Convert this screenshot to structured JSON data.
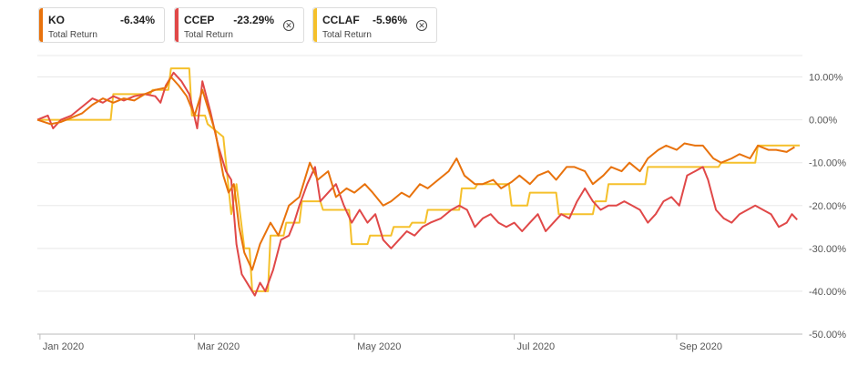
{
  "legend": [
    {
      "ticker": "KO",
      "return": "-6.34%",
      "metric": "Total Return",
      "color": "#e8720c",
      "closable": false
    },
    {
      "ticker": "CCEP",
      "return": "-23.29%",
      "metric": "Total Return",
      "color": "#e04848",
      "closable": true
    },
    {
      "ticker": "CCLAF",
      "return": "-5.96%",
      "metric": "Total Return",
      "color": "#f5c02b",
      "closable": true
    }
  ],
  "chart_data": {
    "type": "line",
    "ylim": [
      -50,
      15
    ],
    "yticks": [
      {
        "v": 10,
        "label": "10.00%"
      },
      {
        "v": 0,
        "label": "0.00%"
      },
      {
        "v": -10,
        "label": "-10.00%"
      },
      {
        "v": -20,
        "label": "-20.00%"
      },
      {
        "v": -30,
        "label": "-30.00%"
      },
      {
        "v": -40,
        "label": "-40.00%"
      },
      {
        "v": -50,
        "label": "-50.00%"
      }
    ],
    "xticks": [
      {
        "date": "2020-01-02",
        "label": "Jan 2020"
      },
      {
        "date": "2020-03-01",
        "label": "Mar 2020"
      },
      {
        "date": "2020-05-01",
        "label": "May 2020"
      },
      {
        "date": "2020-07-01",
        "label": "Jul 2020"
      },
      {
        "date": "2020-09-01",
        "label": "Sep 2020"
      }
    ],
    "xlim": [
      "2020-01-01",
      "2020-10-19"
    ],
    "grid": true,
    "series": [
      {
        "name": "KO",
        "color": "#e8720c",
        "points": [
          [
            "2020-01-01",
            0
          ],
          [
            "2020-01-06",
            -1
          ],
          [
            "2020-01-10",
            -0.5
          ],
          [
            "2020-01-14",
            0.5
          ],
          [
            "2020-01-18",
            1.5
          ],
          [
            "2020-01-22",
            3.5
          ],
          [
            "2020-01-26",
            5
          ],
          [
            "2020-01-30",
            4
          ],
          [
            "2020-02-03",
            5
          ],
          [
            "2020-02-07",
            4.5
          ],
          [
            "2020-02-11",
            6
          ],
          [
            "2020-02-15",
            7
          ],
          [
            "2020-02-19",
            7.5
          ],
          [
            "2020-02-21",
            10
          ],
          [
            "2020-02-24",
            8
          ],
          [
            "2020-02-27",
            5.5
          ],
          [
            "2020-03-01",
            1
          ],
          [
            "2020-03-04",
            7
          ],
          [
            "2020-03-06",
            3
          ],
          [
            "2020-03-09",
            -3
          ],
          [
            "2020-03-12",
            -13
          ],
          [
            "2020-03-14",
            -17
          ],
          [
            "2020-03-16",
            -15
          ],
          [
            "2020-03-18",
            -25
          ],
          [
            "2020-03-20",
            -31
          ],
          [
            "2020-03-23",
            -35
          ],
          [
            "2020-03-26",
            -29
          ],
          [
            "2020-03-30",
            -24
          ],
          [
            "2020-04-02",
            -27
          ],
          [
            "2020-04-06",
            -20
          ],
          [
            "2020-04-10",
            -18
          ],
          [
            "2020-04-14",
            -10
          ],
          [
            "2020-04-17",
            -14
          ],
          [
            "2020-04-21",
            -12
          ],
          [
            "2020-04-24",
            -18
          ],
          [
            "2020-04-28",
            -16
          ],
          [
            "2020-05-01",
            -17
          ],
          [
            "2020-05-05",
            -15
          ],
          [
            "2020-05-08",
            -17
          ],
          [
            "2020-05-12",
            -20
          ],
          [
            "2020-05-15",
            -19
          ],
          [
            "2020-05-19",
            -17
          ],
          [
            "2020-05-22",
            -18
          ],
          [
            "2020-05-26",
            -15
          ],
          [
            "2020-05-29",
            -16
          ],
          [
            "2020-06-02",
            -14
          ],
          [
            "2020-06-06",
            -12
          ],
          [
            "2020-06-09",
            -9
          ],
          [
            "2020-06-12",
            -13
          ],
          [
            "2020-06-16",
            -15
          ],
          [
            "2020-06-19",
            -15
          ],
          [
            "2020-06-23",
            -14
          ],
          [
            "2020-06-26",
            -16
          ],
          [
            "2020-06-30",
            -14.5
          ],
          [
            "2020-07-03",
            -13
          ],
          [
            "2020-07-07",
            -15
          ],
          [
            "2020-07-10",
            -13
          ],
          [
            "2020-07-14",
            -12
          ],
          [
            "2020-07-17",
            -14
          ],
          [
            "2020-07-21",
            -11
          ],
          [
            "2020-07-24",
            -11
          ],
          [
            "2020-07-28",
            -12
          ],
          [
            "2020-07-31",
            -15
          ],
          [
            "2020-08-04",
            -13
          ],
          [
            "2020-08-07",
            -11
          ],
          [
            "2020-08-11",
            -12
          ],
          [
            "2020-08-14",
            -10
          ],
          [
            "2020-08-18",
            -12
          ],
          [
            "2020-08-21",
            -9
          ],
          [
            "2020-08-25",
            -7
          ],
          [
            "2020-08-28",
            -6
          ],
          [
            "2020-09-01",
            -7
          ],
          [
            "2020-09-04",
            -5.5
          ],
          [
            "2020-09-08",
            -6
          ],
          [
            "2020-09-11",
            -6
          ],
          [
            "2020-09-15",
            -9
          ],
          [
            "2020-09-18",
            -10
          ],
          [
            "2020-09-22",
            -9
          ],
          [
            "2020-09-25",
            -8
          ],
          [
            "2020-09-29",
            -9
          ],
          [
            "2020-10-02",
            -6
          ],
          [
            "2020-10-06",
            -7
          ],
          [
            "2020-10-09",
            -7
          ],
          [
            "2020-10-13",
            -7.5
          ],
          [
            "2020-10-16",
            -6.34
          ]
        ]
      },
      {
        "name": "CCEP",
        "color": "#e04848",
        "points": [
          [
            "2020-01-01",
            0
          ],
          [
            "2020-01-05",
            1
          ],
          [
            "2020-01-07",
            -2
          ],
          [
            "2020-01-10",
            0
          ],
          [
            "2020-01-14",
            1
          ],
          [
            "2020-01-18",
            3
          ],
          [
            "2020-01-22",
            5
          ],
          [
            "2020-01-26",
            4
          ],
          [
            "2020-01-30",
            5.5
          ],
          [
            "2020-02-03",
            4.5
          ],
          [
            "2020-02-07",
            5.5
          ],
          [
            "2020-02-11",
            6
          ],
          [
            "2020-02-15",
            5.5
          ],
          [
            "2020-02-17",
            4
          ],
          [
            "2020-02-19",
            8
          ],
          [
            "2020-02-22",
            11
          ],
          [
            "2020-02-25",
            9
          ],
          [
            "2020-02-28",
            6
          ],
          [
            "2020-03-02",
            -2
          ],
          [
            "2020-03-04",
            9
          ],
          [
            "2020-03-07",
            2
          ],
          [
            "2020-03-10",
            -6
          ],
          [
            "2020-03-13",
            -12
          ],
          [
            "2020-03-15",
            -14
          ],
          [
            "2020-03-17",
            -29
          ],
          [
            "2020-03-19",
            -36
          ],
          [
            "2020-03-22",
            -39
          ],
          [
            "2020-03-24",
            -41
          ],
          [
            "2020-03-26",
            -38
          ],
          [
            "2020-03-28",
            -40
          ],
          [
            "2020-03-31",
            -35
          ],
          [
            "2020-04-03",
            -28
          ],
          [
            "2020-04-06",
            -27
          ],
          [
            "2020-04-08",
            -24
          ],
          [
            "2020-04-10",
            -20
          ],
          [
            "2020-04-13",
            -15
          ],
          [
            "2020-04-16",
            -11
          ],
          [
            "2020-04-18",
            -19
          ],
          [
            "2020-04-21",
            -17
          ],
          [
            "2020-04-24",
            -15
          ],
          [
            "2020-04-27",
            -20
          ],
          [
            "2020-04-30",
            -24
          ],
          [
            "2020-05-03",
            -21
          ],
          [
            "2020-05-06",
            -24
          ],
          [
            "2020-05-09",
            -22
          ],
          [
            "2020-05-12",
            -28
          ],
          [
            "2020-05-15",
            -30
          ],
          [
            "2020-05-18",
            -28
          ],
          [
            "2020-05-21",
            -26
          ],
          [
            "2020-05-24",
            -27
          ],
          [
            "2020-05-27",
            -25
          ],
          [
            "2020-05-30",
            -24
          ],
          [
            "2020-06-03",
            -23
          ],
          [
            "2020-06-07",
            -21
          ],
          [
            "2020-06-10",
            -20
          ],
          [
            "2020-06-13",
            -21
          ],
          [
            "2020-06-16",
            -25
          ],
          [
            "2020-06-19",
            -23
          ],
          [
            "2020-06-22",
            -22
          ],
          [
            "2020-06-25",
            -24
          ],
          [
            "2020-06-28",
            -25
          ],
          [
            "2020-07-01",
            -24
          ],
          [
            "2020-07-04",
            -26
          ],
          [
            "2020-07-07",
            -24
          ],
          [
            "2020-07-10",
            -22
          ],
          [
            "2020-07-13",
            -26
          ],
          [
            "2020-07-16",
            -24
          ],
          [
            "2020-07-19",
            -22
          ],
          [
            "2020-07-22",
            -23
          ],
          [
            "2020-07-25",
            -19
          ],
          [
            "2020-07-28",
            -16
          ],
          [
            "2020-07-31",
            -19
          ],
          [
            "2020-08-03",
            -21
          ],
          [
            "2020-08-06",
            -20
          ],
          [
            "2020-08-09",
            -20
          ],
          [
            "2020-08-12",
            -19
          ],
          [
            "2020-08-15",
            -20
          ],
          [
            "2020-08-18",
            -21
          ],
          [
            "2020-08-21",
            -24
          ],
          [
            "2020-08-24",
            -22
          ],
          [
            "2020-08-27",
            -19
          ],
          [
            "2020-08-30",
            -18
          ],
          [
            "2020-09-02",
            -20
          ],
          [
            "2020-09-05",
            -13
          ],
          [
            "2020-09-08",
            -12
          ],
          [
            "2020-09-11",
            -11
          ],
          [
            "2020-09-13",
            -14
          ],
          [
            "2020-09-16",
            -21
          ],
          [
            "2020-09-19",
            -23
          ],
          [
            "2020-09-22",
            -24
          ],
          [
            "2020-09-25",
            -22
          ],
          [
            "2020-09-28",
            -21
          ],
          [
            "2020-10-01",
            -20
          ],
          [
            "2020-10-04",
            -21
          ],
          [
            "2020-10-07",
            -22
          ],
          [
            "2020-10-10",
            -25
          ],
          [
            "2020-10-13",
            -24
          ],
          [
            "2020-10-15",
            -22
          ],
          [
            "2020-10-17",
            -23.29
          ]
        ]
      },
      {
        "name": "CCLAF",
        "color": "#f5c02b",
        "points": [
          [
            "2020-01-01",
            0
          ],
          [
            "2020-01-29",
            0
          ],
          [
            "2020-01-30",
            6
          ],
          [
            "2020-02-13",
            6
          ],
          [
            "2020-02-14",
            7
          ],
          [
            "2020-02-20",
            7
          ],
          [
            "2020-02-21",
            12
          ],
          [
            "2020-02-28",
            12
          ],
          [
            "2020-02-29",
            1
          ],
          [
            "2020-03-05",
            1
          ],
          [
            "2020-03-06",
            -1
          ],
          [
            "2020-03-12",
            -4
          ],
          [
            "2020-03-15",
            -22
          ],
          [
            "2020-03-17",
            -15
          ],
          [
            "2020-03-20",
            -30
          ],
          [
            "2020-03-22",
            -30
          ],
          [
            "2020-03-23",
            -40
          ],
          [
            "2020-03-29",
            -40
          ],
          [
            "2020-03-30",
            -27
          ],
          [
            "2020-04-04",
            -27
          ],
          [
            "2020-04-05",
            -24
          ],
          [
            "2020-04-10",
            -24
          ],
          [
            "2020-04-11",
            -19
          ],
          [
            "2020-04-18",
            -19
          ],
          [
            "2020-04-19",
            -21
          ],
          [
            "2020-04-29",
            -21
          ],
          [
            "2020-04-30",
            -29
          ],
          [
            "2020-05-06",
            -29
          ],
          [
            "2020-05-07",
            -27
          ],
          [
            "2020-05-15",
            -27
          ],
          [
            "2020-05-16",
            -25
          ],
          [
            "2020-05-22",
            -25
          ],
          [
            "2020-05-23",
            -24
          ],
          [
            "2020-05-28",
            -24
          ],
          [
            "2020-05-29",
            -21
          ],
          [
            "2020-06-10",
            -21
          ],
          [
            "2020-06-11",
            -16
          ],
          [
            "2020-06-16",
            -16
          ],
          [
            "2020-06-17",
            -15
          ],
          [
            "2020-06-29",
            -15
          ],
          [
            "2020-06-30",
            -20
          ],
          [
            "2020-07-06",
            -20
          ],
          [
            "2020-07-07",
            -17
          ],
          [
            "2020-07-17",
            -17
          ],
          [
            "2020-07-18",
            -22
          ],
          [
            "2020-07-31",
            -22
          ],
          [
            "2020-08-01",
            -19
          ],
          [
            "2020-08-05",
            -19
          ],
          [
            "2020-08-06",
            -15
          ],
          [
            "2020-08-20",
            -15
          ],
          [
            "2020-08-21",
            -11
          ],
          [
            "2020-09-17",
            -11
          ],
          [
            "2020-09-18",
            -10
          ],
          [
            "2020-10-01",
            -10
          ],
          [
            "2020-10-02",
            -6
          ],
          [
            "2020-10-18",
            -5.96
          ]
        ]
      }
    ]
  }
}
